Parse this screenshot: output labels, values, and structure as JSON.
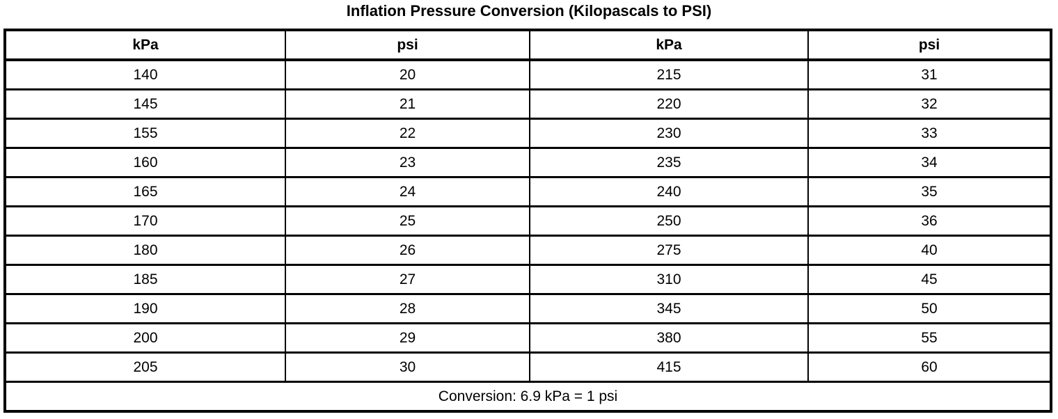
{
  "title": "Inflation Pressure Conversion (Kilopascals to PSI)",
  "table": {
    "columns": [
      "kPa",
      "psi",
      "kPa",
      "psi"
    ],
    "rows": [
      [
        "140",
        "20",
        "215",
        "31"
      ],
      [
        "145",
        "21",
        "220",
        "32"
      ],
      [
        "155",
        "22",
        "230",
        "33"
      ],
      [
        "160",
        "23",
        "235",
        "34"
      ],
      [
        "165",
        "24",
        "240",
        "35"
      ],
      [
        "170",
        "25",
        "250",
        "36"
      ],
      [
        "180",
        "26",
        "275",
        "40"
      ],
      [
        "185",
        "27",
        "310",
        "45"
      ],
      [
        "190",
        "28",
        "345",
        "50"
      ],
      [
        "200",
        "29",
        "380",
        "55"
      ],
      [
        "205",
        "30",
        "415",
        "60"
      ]
    ],
    "footer": "Conversion: 6.9 kPa = 1 psi"
  },
  "colors": {
    "background": "#ffffff",
    "border": "#000000",
    "text": "#000000"
  }
}
